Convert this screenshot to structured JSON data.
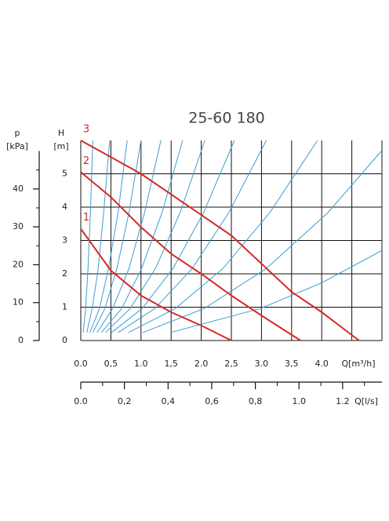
{
  "chart_data": {
    "type": "line",
    "title": "25-60 180",
    "xlabel": "Q[m³/h]",
    "ylabel": "H",
    "yunit": "[m]",
    "y2label": "p",
    "y2unit": "[kPa]",
    "x2label": "Q[l/s]",
    "xlim": [
      0,
      5
    ],
    "ylim": [
      0,
      6
    ],
    "xticks": [
      {
        "value": 0,
        "label": "0.0"
      },
      {
        "value": 0.5,
        "label": "0,5"
      },
      {
        "value": 1,
        "label": "1.0"
      },
      {
        "value": 1.5,
        "label": "1,5"
      },
      {
        "value": 2,
        "label": "2.0"
      },
      {
        "value": 2.5,
        "label": "2,5"
      },
      {
        "value": 3,
        "label": "3.0"
      },
      {
        "value": 3.5,
        "label": "3,5"
      },
      {
        "value": 4,
        "label": "4.0"
      }
    ],
    "xgrid": [
      0,
      0.5,
      1,
      1.5,
      2,
      2.5,
      3,
      3.5,
      4,
      4.5,
      5
    ],
    "yticks": [
      0,
      1,
      2,
      3,
      4,
      5
    ],
    "y2lim": [
      0,
      50
    ],
    "y2ticks": [
      0,
      10,
      20,
      30,
      40
    ],
    "y2minorticks": [
      5,
      15,
      25,
      35,
      45
    ],
    "x2lim": [
      0,
      1.38
    ],
    "x2ticks": [
      {
        "value": 0,
        "label": "0.0"
      },
      {
        "value": 0.2,
        "label": "0,2"
      },
      {
        "value": 0.4,
        "label": "0,4"
      },
      {
        "value": 0.6,
        "label": "0,6"
      },
      {
        "value": 0.8,
        "label": "0,8"
      },
      {
        "value": 1,
        "label": "1.0"
      },
      {
        "value": 1.2,
        "label": "1.2"
      }
    ],
    "x2minorticks": [
      0.1,
      0.3,
      0.5,
      0.7,
      0.9,
      1.1,
      1.3
    ],
    "grid": true,
    "series": [
      {
        "name": "1",
        "color": "#d42a26",
        "x": [
          0,
          0.5,
          1,
          1.5,
          2,
          2.5
        ],
        "values": [
          3.35,
          2.1,
          1.35,
          0.85,
          0.45,
          0
        ]
      },
      {
        "name": "2",
        "color": "#d42a26",
        "x": [
          0,
          0.5,
          1,
          1.5,
          2,
          2.5,
          3,
          3.65
        ],
        "values": [
          5.05,
          4.3,
          3.4,
          2.6,
          2,
          1.35,
          0.75,
          0
        ]
      },
      {
        "name": "3",
        "color": "#d42a26",
        "x": [
          0,
          1,
          2.5,
          3.5,
          4,
          4.62
        ],
        "values": [
          6,
          5,
          3.15,
          1.46,
          0.85,
          0
        ]
      }
    ],
    "system_color": "#3a9fd0",
    "system_curves": [
      {
        "x": [
          0.04,
          0.08,
          0.12,
          0.16,
          0.2
        ],
        "values": [
          0.24,
          0.96,
          2.16,
          3.84,
          6
        ]
      },
      {
        "x": [
          0.1,
          0.19,
          0.29,
          0.38,
          0.48
        ],
        "values": [
          0.24,
          0.96,
          2.16,
          3.84,
          6
        ]
      },
      {
        "x": [
          0.15,
          0.31,
          0.46,
          0.62,
          0.77
        ],
        "values": [
          0.24,
          0.96,
          2.16,
          3.84,
          6
        ]
      },
      {
        "x": [
          0.2,
          0.4,
          0.6,
          0.8,
          1
        ],
        "values": [
          0.24,
          0.96,
          2.16,
          3.84,
          6
        ]
      },
      {
        "x": [
          0.27,
          0.53,
          0.8,
          1.06,
          1.33
        ],
        "values": [
          0.24,
          0.96,
          2.16,
          3.84,
          6
        ]
      },
      {
        "x": [
          0.34,
          0.68,
          1.01,
          1.35,
          1.69
        ],
        "values": [
          0.24,
          0.96,
          2.16,
          3.84,
          6
        ]
      },
      {
        "x": [
          0.41,
          0.82,
          1.24,
          1.65,
          2.06
        ],
        "values": [
          0.24,
          0.96,
          2.16,
          3.84,
          6
        ]
      },
      {
        "x": [
          0.51,
          1.02,
          1.53,
          2.04,
          2.55
        ],
        "values": [
          0.24,
          0.96,
          2.16,
          3.84,
          6
        ]
      },
      {
        "x": [
          0.62,
          1.23,
          1.85,
          2.46,
          3.08
        ],
        "values": [
          0.24,
          0.96,
          2.16,
          3.84,
          6
        ]
      },
      {
        "x": [
          0.79,
          1.57,
          2.36,
          3.14,
          3.93
        ],
        "values": [
          0.24,
          0.96,
          2.16,
          3.84,
          6
        ]
      },
      {
        "x": [
          1.03,
          2.05,
          3.08,
          4.1,
          5
        ],
        "values": [
          0.24,
          0.96,
          2.16,
          3.83,
          5.7
        ]
      },
      {
        "x": [
          1.49,
          2.98,
          4,
          5
        ],
        "values": [
          0.24,
          0.96,
          1.73,
          2.7
        ]
      }
    ]
  }
}
